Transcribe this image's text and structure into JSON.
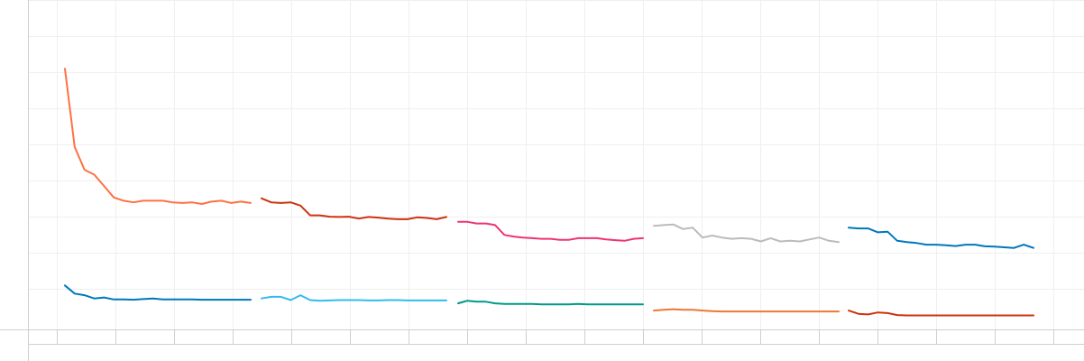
{
  "chart_data": {
    "type": "line",
    "title": "",
    "xlabel": "",
    "ylabel": "",
    "grid": true,
    "legend": "none",
    "x_tick_count": 18,
    "y_gridline_count": 9,
    "panels": [
      {
        "series": [
          {
            "color": "#ff7043",
            "values": [
              8.0,
              5.6,
              4.9,
              4.75,
              4.4,
              4.05,
              3.95,
              3.9,
              3.95,
              3.95,
              3.95,
              3.9,
              3.88,
              3.9,
              3.85,
              3.92,
              3.95,
              3.88,
              3.92,
              3.88
            ]
          },
          {
            "color": "#0077bb",
            "values": [
              1.35,
              1.1,
              1.05,
              0.95,
              0.98,
              0.92,
              0.92,
              0.91,
              0.93,
              0.95,
              0.92,
              0.92,
              0.92,
              0.92,
              0.91,
              0.91,
              0.91,
              0.91,
              0.91,
              0.91
            ]
          }
        ]
      },
      {
        "series": [
          {
            "color": "#cc3311",
            "values": [
              4.02,
              3.9,
              3.88,
              3.9,
              3.8,
              3.5,
              3.5,
              3.46,
              3.45,
              3.46,
              3.4,
              3.45,
              3.43,
              3.4,
              3.38,
              3.38,
              3.44,
              3.42,
              3.38,
              3.45
            ]
          },
          {
            "color": "#33bbee",
            "values": [
              0.95,
              1.0,
              1.0,
              0.9,
              1.05,
              0.9,
              0.88,
              0.89,
              0.9,
              0.9,
              0.9,
              0.89,
              0.89,
              0.9,
              0.9,
              0.89,
              0.89,
              0.89,
              0.89,
              0.89
            ]
          }
        ]
      },
      {
        "series": [
          {
            "color": "#ee3377",
            "values": [
              3.3,
              3.3,
              3.25,
              3.25,
              3.2,
              2.9,
              2.85,
              2.82,
              2.8,
              2.78,
              2.78,
              2.75,
              2.75,
              2.8,
              2.8,
              2.8,
              2.76,
              2.74,
              2.72,
              2.78,
              2.8
            ]
          },
          {
            "color": "#009988",
            "values": [
              0.8,
              0.88,
              0.85,
              0.85,
              0.8,
              0.78,
              0.78,
              0.78,
              0.78,
              0.77,
              0.77,
              0.77,
              0.77,
              0.78,
              0.77,
              0.77,
              0.77,
              0.77,
              0.77,
              0.77,
              0.77
            ]
          }
        ]
      },
      {
        "series": [
          {
            "color": "#bbbbbb",
            "values": [
              3.18,
              3.2,
              3.22,
              3.08,
              3.12,
              2.82,
              2.88,
              2.82,
              2.78,
              2.8,
              2.78,
              2.7,
              2.8,
              2.7,
              2.72,
              2.7,
              2.76,
              2.82,
              2.72,
              2.68
            ]
          },
          {
            "color": "#ee7733",
            "values": [
              0.58,
              0.6,
              0.62,
              0.6,
              0.6,
              0.58,
              0.56,
              0.55,
              0.55,
              0.55,
              0.55,
              0.55,
              0.55,
              0.55,
              0.55,
              0.55,
              0.55,
              0.55,
              0.55,
              0.55
            ]
          }
        ]
      },
      {
        "series": [
          {
            "color": "#0077bb",
            "values": [
              3.12,
              3.1,
              3.1,
              2.98,
              3.0,
              2.72,
              2.68,
              2.65,
              2.6,
              2.6,
              2.58,
              2.56,
              2.6,
              2.6,
              2.55,
              2.54,
              2.52,
              2.5,
              2.6,
              2.5
            ]
          },
          {
            "color": "#cc3311",
            "values": [
              0.58,
              0.48,
              0.46,
              0.52,
              0.5,
              0.44,
              0.43,
              0.43,
              0.43,
              0.43,
              0.43,
              0.43,
              0.43,
              0.43,
              0.43,
              0.43,
              0.43,
              0.43,
              0.43,
              0.43
            ]
          }
        ]
      }
    ],
    "ylim": [
      0,
      9
    ]
  }
}
